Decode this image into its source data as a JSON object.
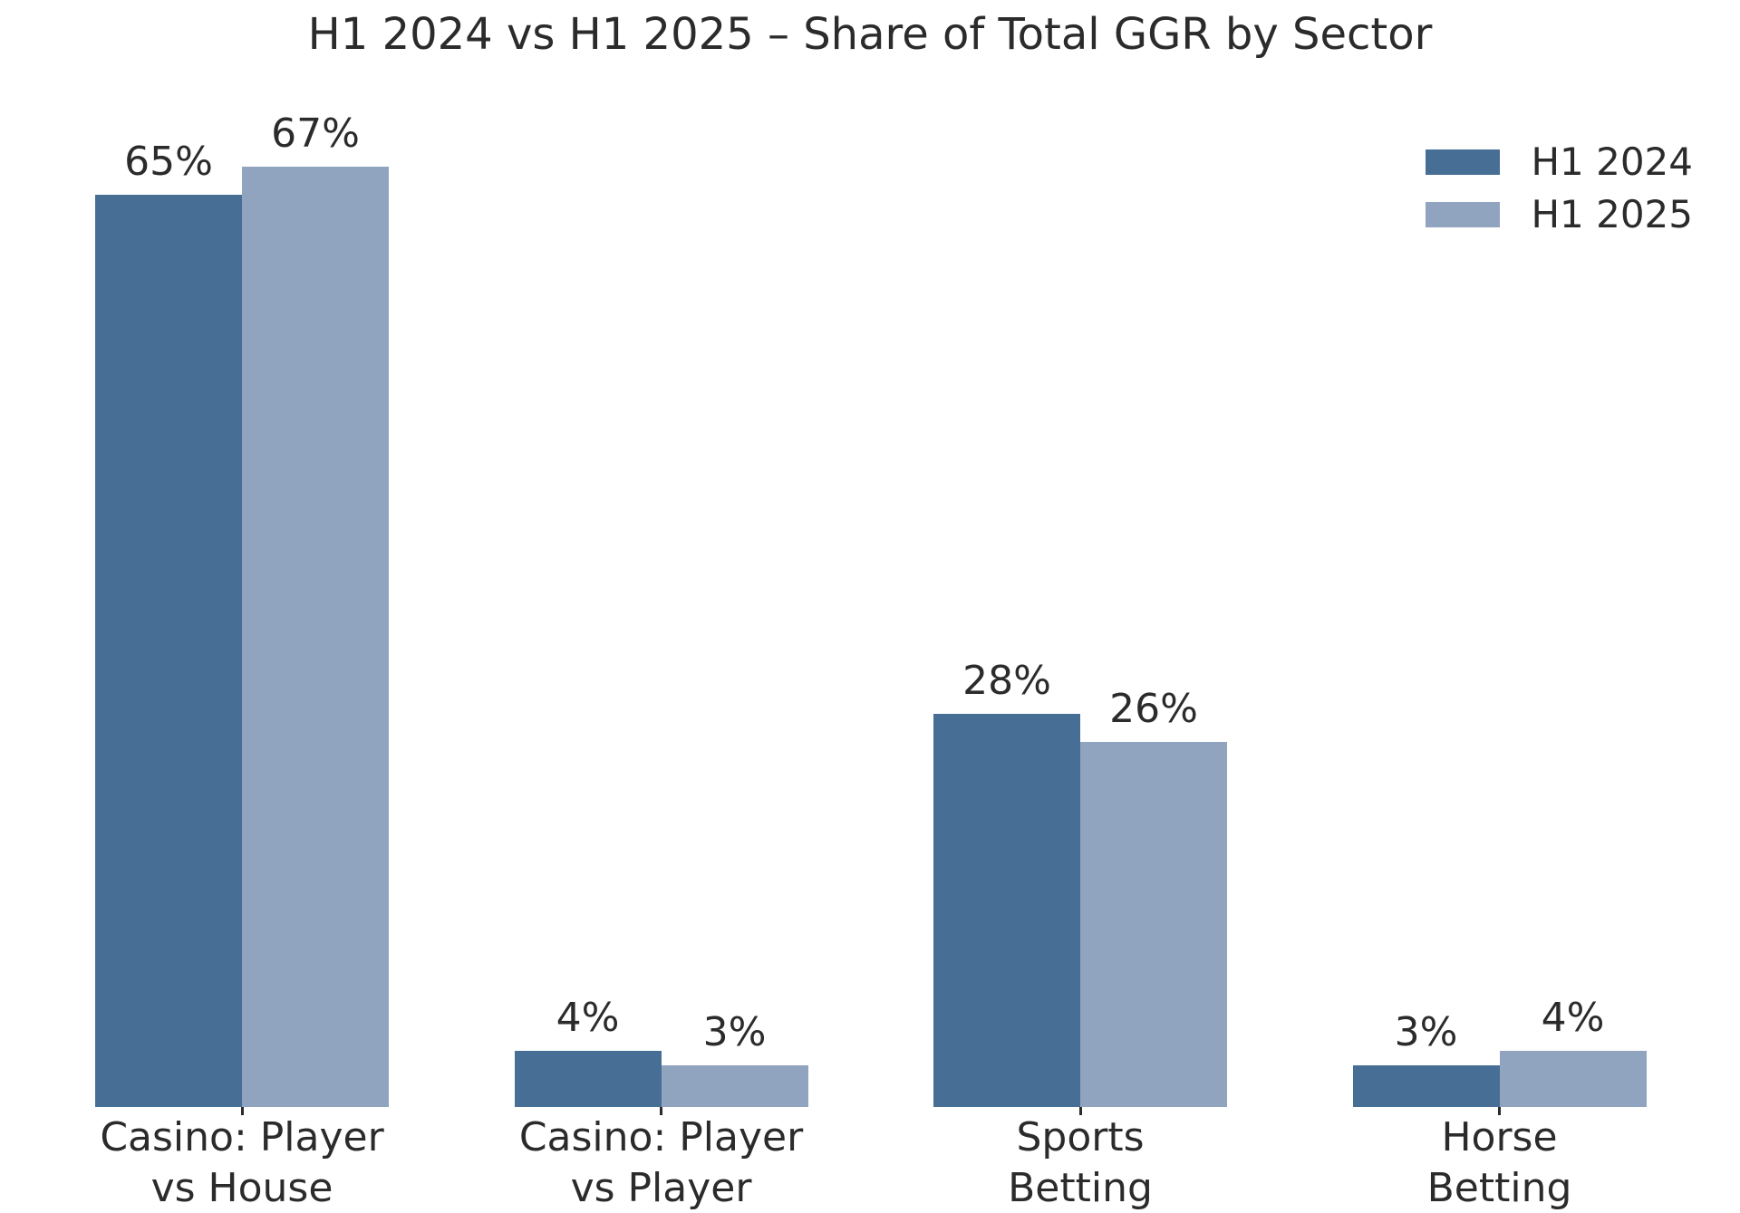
{
  "chart_data": {
    "type": "bar",
    "title": "H1 2024 vs H1 2025 – Share of Total GGR by Sector",
    "categories": [
      "Casino: Player\nvs House",
      "Casino: Player\nvs Player",
      "Sports\nBetting",
      "Horse\nBetting"
    ],
    "series": [
      {
        "name": "H1 2024",
        "color": "#476f96",
        "values": [
          65,
          4,
          28,
          3
        ],
        "labels": [
          "65%",
          "4%",
          "28%",
          "3%"
        ]
      },
      {
        "name": "H1 2025",
        "color": "#90a4c0",
        "values": [
          67,
          3,
          26,
          4
        ],
        "labels": [
          "67%",
          "3%",
          "26%",
          "4%"
        ]
      }
    ],
    "value_suffix": "%",
    "ylim": [
      0,
      73
    ],
    "grid": false,
    "legend_position": "upper right",
    "background": "#ffffff",
    "text_color": "#2b2b2b"
  }
}
